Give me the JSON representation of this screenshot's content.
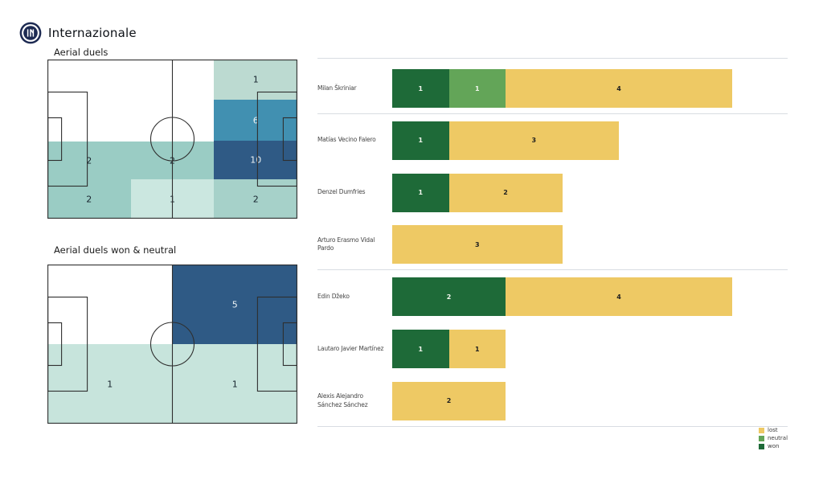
{
  "header": {
    "team_name": "Internazionale"
  },
  "colors": {
    "won": "#1e6a38",
    "neutral": "#63a558",
    "lost": "#eec964",
    "logo_navy": "#1d2a52",
    "pitch_line": "#2f2f2f",
    "separator": "#d9dde2",
    "value_on_dark": "#f2f6ee",
    "value_on_light": "#1f1f1f",
    "zone_label_dark": "#17242e",
    "zone_label_light": "#ecf3f5"
  },
  "chart_data": [
    {
      "type": "heatmap",
      "title": "Aerial duels",
      "zones": [
        {
          "x": 0.667,
          "y": 0.0,
          "w": 0.333,
          "h": 0.255,
          "value": 1,
          "color": "#bcdad1",
          "text": "dark"
        },
        {
          "x": 0.667,
          "y": 0.255,
          "w": 0.333,
          "h": 0.256,
          "value": 6,
          "color": "#4190b1",
          "text": "light"
        },
        {
          "x": 0.667,
          "y": 0.511,
          "w": 0.333,
          "h": 0.242,
          "value": 10,
          "color": "#2f5a85",
          "text": "light"
        },
        {
          "x": 0.667,
          "y": 0.753,
          "w": 0.333,
          "h": 0.247,
          "value": 2,
          "color": "#a6d1c9",
          "text": "dark"
        },
        {
          "x": 0.0,
          "y": 0.515,
          "w": 0.333,
          "h": 0.238,
          "value": 2,
          "color": "#9accc4",
          "text": "dark"
        },
        {
          "x": 0.0,
          "y": 0.753,
          "w": 0.333,
          "h": 0.247,
          "value": 2,
          "color": "#9accc4",
          "text": "dark"
        },
        {
          "x": 0.333,
          "y": 0.515,
          "w": 0.334,
          "h": 0.238,
          "value": 2,
          "color": "#9accc4",
          "text": "dark"
        },
        {
          "x": 0.333,
          "y": 0.753,
          "w": 0.334,
          "h": 0.247,
          "value": 1,
          "color": "#cbe7e0",
          "text": "dark"
        }
      ]
    },
    {
      "type": "heatmap",
      "title": "Aerial duels won & neutral",
      "zones": [
        {
          "x": 0.5,
          "y": 0.0,
          "w": 0.5,
          "h": 0.5,
          "value": 5,
          "color": "#2f5a85",
          "text": "light"
        },
        {
          "x": 0.0,
          "y": 0.5,
          "w": 0.5,
          "h": 0.5,
          "value": 1,
          "color": "#c7e4dc",
          "text": "dark"
        },
        {
          "x": 0.5,
          "y": 0.5,
          "w": 0.5,
          "h": 0.5,
          "value": 1,
          "color": "#c7e4dc",
          "text": "dark"
        }
      ]
    },
    {
      "type": "bar",
      "stacked": true,
      "orientation": "horizontal",
      "categories": [
        "Milan Škriniar",
        "Matías Vecino Falero",
        "Denzel Dumfries",
        "Arturo Erasmo Vidal Pardo",
        "Edin Džeko",
        "Lautaro Javier Martínez",
        "Alexis Alejandro Sánchez Sánchez"
      ],
      "label_lines": [
        [
          "Milan Škriniar"
        ],
        [
          "Matías Vecino Falero"
        ],
        [
          "Denzel Dumfries"
        ],
        [
          "Arturo Erasmo Vidal",
          "Pardo"
        ],
        [
          "Edin Džeko"
        ],
        [
          "Lautaro Javier Martínez"
        ],
        [
          "Alexis Alejandro",
          "Sánchez Sánchez"
        ]
      ],
      "series": [
        {
          "name": "won",
          "values": [
            1,
            1,
            1,
            0,
            2,
            1,
            0
          ]
        },
        {
          "name": "neutral",
          "values": [
            1,
            0,
            0,
            0,
            0,
            0,
            0
          ]
        },
        {
          "name": "lost",
          "values": [
            4,
            3,
            2,
            3,
            4,
            1,
            2
          ]
        }
      ],
      "separator_rows": [
        -1,
        0,
        3,
        6
      ],
      "xlim": [
        0,
        6
      ]
    }
  ],
  "legend": {
    "items": [
      {
        "label": "lost",
        "color": "#eec964"
      },
      {
        "label": "neutral",
        "color": "#63a558"
      },
      {
        "label": "won",
        "color": "#1e6a38"
      }
    ]
  }
}
